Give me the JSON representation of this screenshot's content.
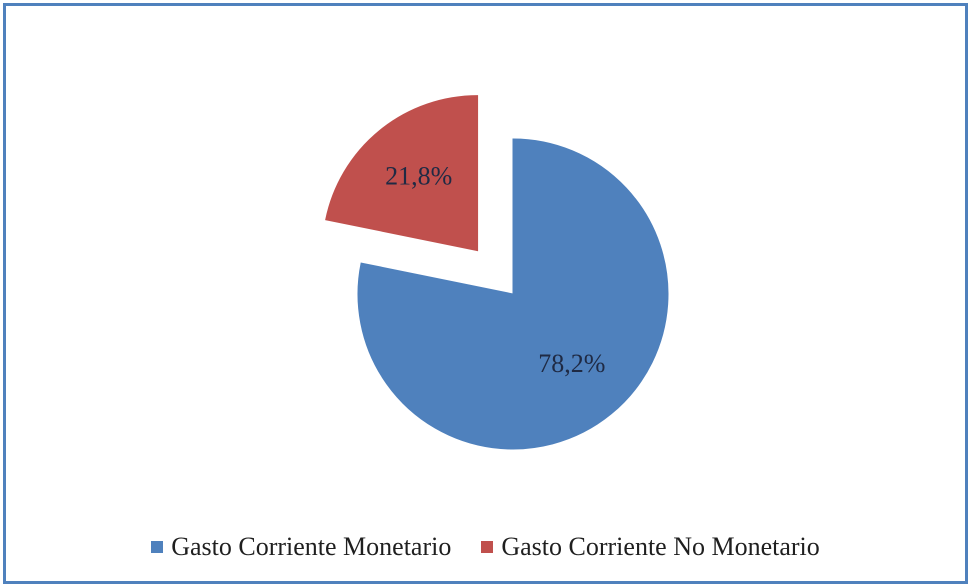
{
  "chart_data": {
    "type": "pie",
    "title": "",
    "series": [
      {
        "name": "Gasto Corriente Monetario",
        "value": 78.2,
        "label": "78,2%",
        "color": "#4f81bd",
        "exploded": false
      },
      {
        "name": "Gasto Corriente No Monetario",
        "value": 21.8,
        "label": "21,8%",
        "color": "#c0504d",
        "exploded": true
      }
    ],
    "legend_position": "bottom"
  },
  "legend": {
    "items": [
      {
        "label": "Gasto Corriente Monetario",
        "color": "#4f81bd"
      },
      {
        "label": "Gasto Corriente No Monetario",
        "color": "#c0504d"
      }
    ]
  }
}
